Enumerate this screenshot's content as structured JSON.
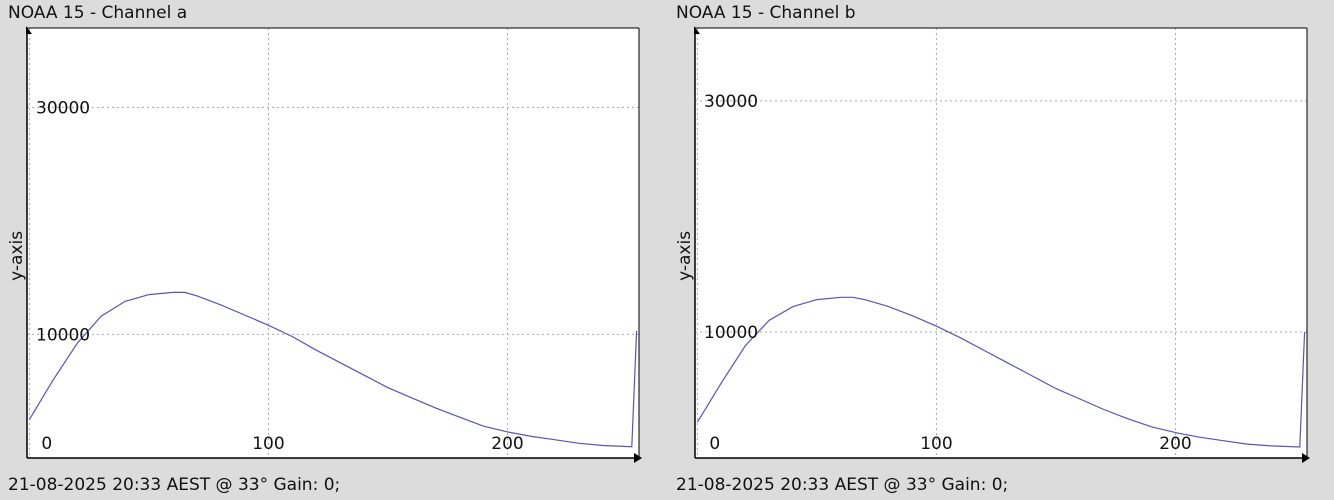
{
  "charts": [
    {
      "title": "NOAA 15 - Channel a",
      "footer": "21-08-2025 20:33 AEST @ 33° Gain: 0;",
      "ylabel": "y-axis"
    },
    {
      "title": "NOAA 15 - Channel b",
      "footer": "21-08-2025 20:33 AEST @ 33° Gain: 0;",
      "ylabel": "y-axis"
    }
  ],
  "chart_data": [
    {
      "type": "line",
      "title": "NOAA 15 - Channel a",
      "xlabel": "",
      "ylabel": "y-axis",
      "xlim": [
        -1,
        255
      ],
      "ylim": [
        -900,
        37000
      ],
      "xticks": [
        0,
        100,
        200
      ],
      "yticks": [
        10000,
        30000
      ],
      "grid": true,
      "line_color": "#5555bb",
      "series": [
        {
          "x": [
            0,
            10,
            20,
            30,
            40,
            50,
            60,
            65,
            70,
            80,
            90,
            100,
            110,
            120,
            130,
            140,
            150,
            160,
            170,
            180,
            190,
            200,
            210,
            220,
            230,
            240,
            252,
            254
          ],
          "y": [
            2500,
            6000,
            9200,
            11600,
            12900,
            13500,
            13700,
            13700,
            13400,
            12600,
            11700,
            10800,
            9800,
            8600,
            7500,
            6400,
            5300,
            4400,
            3500,
            2700,
            1900,
            1400,
            1000,
            700,
            400,
            200,
            100,
            10300
          ]
        }
      ]
    },
    {
      "type": "line",
      "title": "NOAA 15 - Channel b",
      "xlabel": "",
      "ylabel": "y-axis",
      "xlim": [
        -1,
        255
      ],
      "ylim": [
        -900,
        36300
      ],
      "xticks": [
        0,
        100,
        200
      ],
      "yticks": [
        10000,
        30000
      ],
      "grid": true,
      "line_color": "#5555bb",
      "series": [
        {
          "x": [
            0,
            10,
            20,
            30,
            40,
            50,
            60,
            65,
            70,
            80,
            90,
            100,
            110,
            120,
            130,
            140,
            150,
            160,
            170,
            180,
            190,
            200,
            210,
            220,
            230,
            240,
            252,
            254
          ],
          "y": [
            2200,
            5600,
            8800,
            11000,
            12200,
            12800,
            13000,
            13000,
            12800,
            12200,
            11400,
            10500,
            9500,
            8400,
            7300,
            6200,
            5100,
            4200,
            3300,
            2500,
            1800,
            1300,
            900,
            600,
            300,
            150,
            50,
            10000
          ]
        }
      ]
    }
  ]
}
